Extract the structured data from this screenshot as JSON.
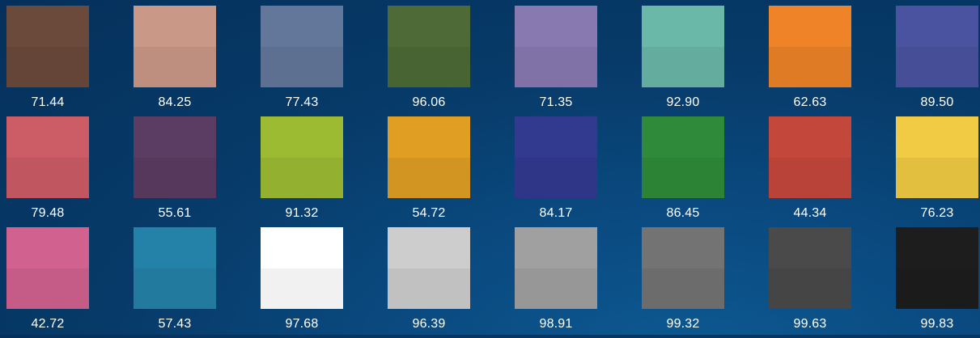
{
  "swatches": [
    {
      "color": "#6b4a3b",
      "value": "71.44"
    },
    {
      "color": "#c99887",
      "value": "84.25"
    },
    {
      "color": "#63779b",
      "value": "77.43"
    },
    {
      "color": "#4e6a36",
      "value": "96.06"
    },
    {
      "color": "#8879b0",
      "value": "71.35"
    },
    {
      "color": "#6ab8a8",
      "value": "92.90"
    },
    {
      "color": "#ee8328",
      "value": "62.63"
    },
    {
      "color": "#4a539f",
      "value": "89.50"
    },
    {
      "color": "#cc5c66",
      "value": "79.48"
    },
    {
      "color": "#5b3c63",
      "value": "55.61"
    },
    {
      "color": "#9cbb33",
      "value": "91.32"
    },
    {
      "color": "#e09e23",
      "value": "54.72"
    },
    {
      "color": "#323a8f",
      "value": "84.17"
    },
    {
      "color": "#2f8b3a",
      "value": "86.45"
    },
    {
      "color": "#c4473c",
      "value": "44.34"
    },
    {
      "color": "#f1cb44",
      "value": "76.23"
    },
    {
      "color": "#d1628f",
      "value": "42.72"
    },
    {
      "color": "#2482a9",
      "value": "57.43"
    },
    {
      "color": "#ffffff",
      "value": "97.68"
    },
    {
      "color": "#cdcdcd",
      "value": "96.39"
    },
    {
      "color": "#a0a0a0",
      "value": "98.91"
    },
    {
      "color": "#737373",
      "value": "99.32"
    },
    {
      "color": "#4a4a4a",
      "value": "99.63"
    },
    {
      "color": "#1d1d1d",
      "value": "99.83"
    }
  ]
}
